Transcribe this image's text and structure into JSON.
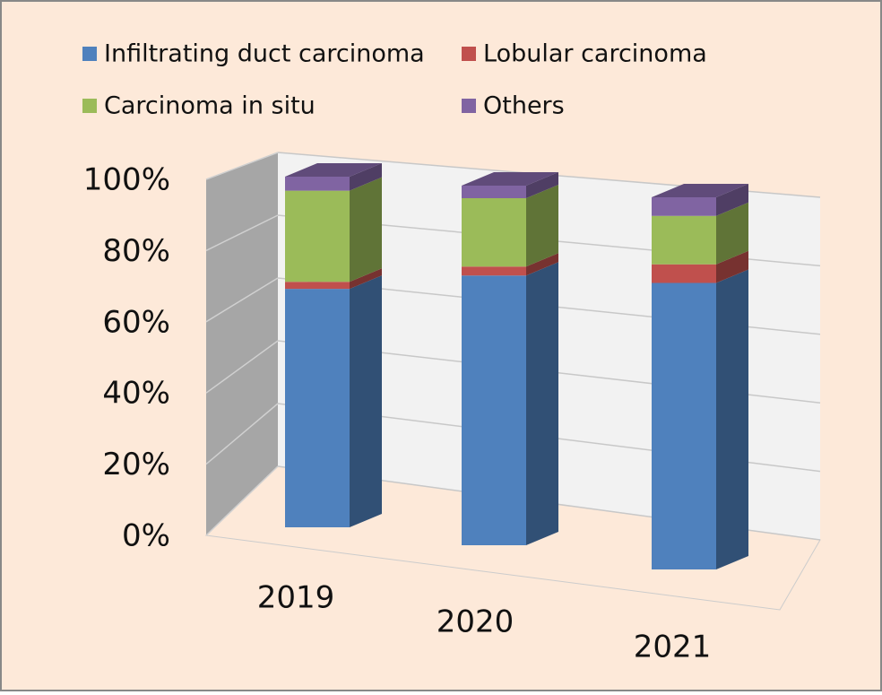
{
  "chart_data": {
    "type": "bar3d_stacked",
    "categories": [
      "2019",
      "2020",
      "2021"
    ],
    "series": [
      {
        "name": "Infiltrating duct carcinoma",
        "color": "#4f81bd",
        "values": [
          68,
          75,
          77
        ]
      },
      {
        "name": "Lobular carcinoma",
        "color": "#c0504d",
        "values": [
          2,
          2.5,
          5
        ]
      },
      {
        "name": "Carcinoma in situ",
        "color": "#9bbb59",
        "values": [
          26,
          19,
          13
        ]
      },
      {
        "name": "Others",
        "color": "#8064a2",
        "values": [
          4,
          3.5,
          5
        ]
      }
    ],
    "ylim": [
      0,
      100
    ],
    "yticks": [
      {
        "value": 0,
        "label": "0%"
      },
      {
        "value": 20,
        "label": "20%"
      },
      {
        "value": 40,
        "label": "40%"
      },
      {
        "value": 60,
        "label": "60%"
      },
      {
        "value": 80,
        "label": "80%"
      },
      {
        "value": 100,
        "label": "100%"
      }
    ],
    "grid": true
  }
}
